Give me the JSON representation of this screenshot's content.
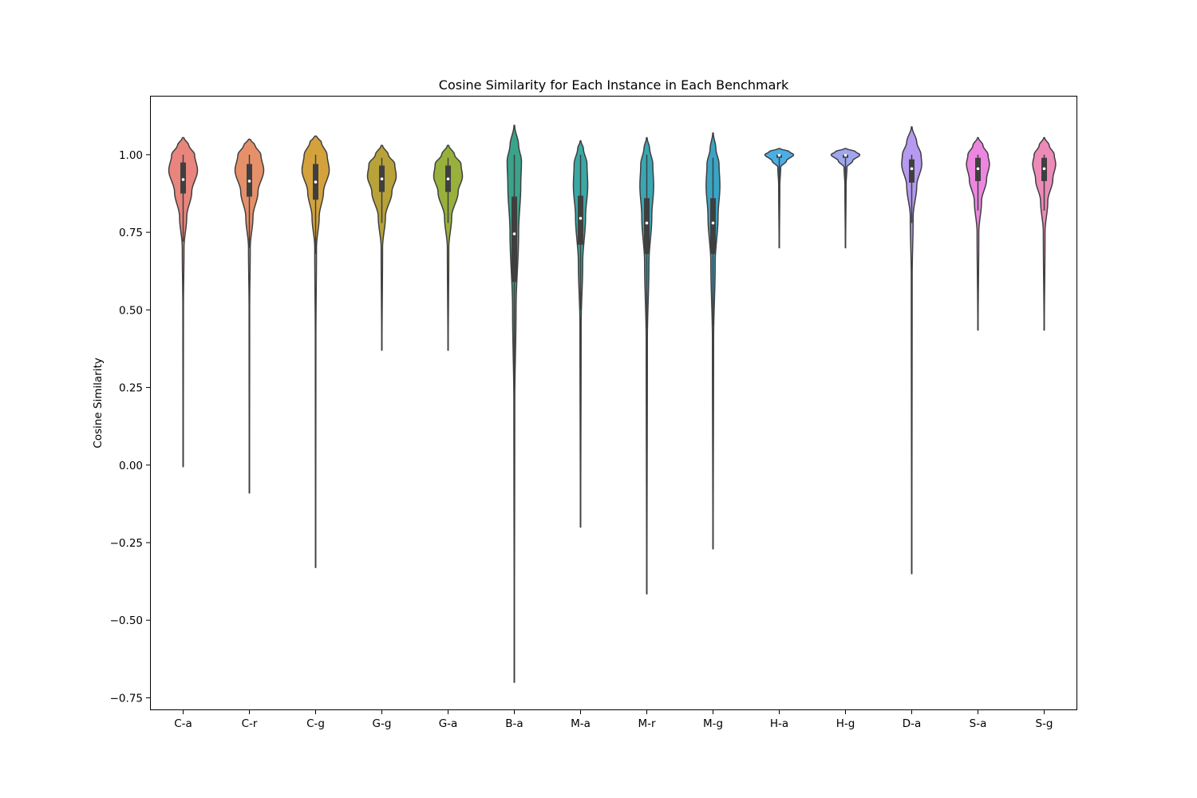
{
  "chart_data": {
    "type": "violin",
    "title": "Cosine Similarity for Each Instance in Each Benchmark",
    "xlabel": "",
    "ylabel": "Cosine Similarity",
    "ylim": [
      -0.79,
      1.19
    ],
    "yticks": [
      -0.75,
      -0.5,
      -0.25,
      0.0,
      0.25,
      0.5,
      0.75,
      1.0
    ],
    "ytick_labels": [
      "−0.75",
      "−0.50",
      "−0.25",
      "0.00",
      "0.25",
      "0.50",
      "0.75",
      "1.00"
    ],
    "grid": false,
    "categories": [
      "C-a",
      "C-r",
      "C-g",
      "G-g",
      "G-a",
      "B-a",
      "M-a",
      "M-r",
      "M-g",
      "H-a",
      "H-g",
      "D-a",
      "S-a",
      "S-g"
    ],
    "series": [
      {
        "category": "C-a",
        "color": "#e8857c",
        "min": -0.005,
        "max": 1.055,
        "q1": 0.875,
        "median": 0.92,
        "q3": 0.975,
        "whisker_low": 0.72,
        "whisker_high": 1.0,
        "density": [
          [
            -0.005,
            0.01
          ],
          [
            0.5,
            0.02
          ],
          [
            0.7,
            0.06
          ],
          [
            0.8,
            0.25
          ],
          [
            0.88,
            0.6
          ],
          [
            0.95,
            1.0
          ],
          [
            1.0,
            0.8
          ],
          [
            1.03,
            0.4
          ],
          [
            1.055,
            0.05
          ]
        ]
      },
      {
        "category": "C-r",
        "color": "#e6906a",
        "min": -0.09,
        "max": 1.05,
        "q1": 0.865,
        "median": 0.915,
        "q3": 0.97,
        "whisker_low": 0.7,
        "whisker_high": 1.0,
        "density": [
          [
            -0.09,
            0.01
          ],
          [
            0.5,
            0.02
          ],
          [
            0.7,
            0.06
          ],
          [
            0.8,
            0.25
          ],
          [
            0.88,
            0.6
          ],
          [
            0.95,
            1.0
          ],
          [
            1.0,
            0.8
          ],
          [
            1.03,
            0.4
          ],
          [
            1.05,
            0.05
          ]
        ]
      },
      {
        "category": "C-g",
        "color": "#d4a23c",
        "min": -0.33,
        "max": 1.06,
        "q1": 0.855,
        "median": 0.912,
        "q3": 0.97,
        "whisker_low": 0.68,
        "whisker_high": 1.0,
        "density": [
          [
            -0.33,
            0.01
          ],
          [
            0.4,
            0.02
          ],
          [
            0.7,
            0.06
          ],
          [
            0.8,
            0.25
          ],
          [
            0.88,
            0.55
          ],
          [
            0.95,
            0.95
          ],
          [
            1.0,
            0.8
          ],
          [
            1.04,
            0.4
          ],
          [
            1.06,
            0.05
          ]
        ]
      },
      {
        "category": "G-g",
        "color": "#b8a23a",
        "min": 0.37,
        "max": 1.03,
        "q1": 0.88,
        "median": 0.922,
        "q3": 0.965,
        "whisker_low": 0.78,
        "whisker_high": 0.99,
        "density": [
          [
            0.37,
            0.01
          ],
          [
            0.7,
            0.05
          ],
          [
            0.8,
            0.25
          ],
          [
            0.88,
            0.7
          ],
          [
            0.93,
            1.0
          ],
          [
            0.97,
            0.9
          ],
          [
            1.0,
            0.45
          ],
          [
            1.03,
            0.05
          ]
        ]
      },
      {
        "category": "G-a",
        "color": "#98b03c",
        "min": 0.37,
        "max": 1.03,
        "q1": 0.88,
        "median": 0.922,
        "q3": 0.965,
        "whisker_low": 0.78,
        "whisker_high": 0.99,
        "density": [
          [
            0.37,
            0.01
          ],
          [
            0.7,
            0.05
          ],
          [
            0.8,
            0.25
          ],
          [
            0.88,
            0.7
          ],
          [
            0.93,
            1.0
          ],
          [
            0.97,
            0.9
          ],
          [
            1.0,
            0.45
          ],
          [
            1.03,
            0.05
          ]
        ]
      },
      {
        "category": "B-a",
        "color": "#3aa48a",
        "min": -0.7,
        "max": 1.095,
        "q1": 0.59,
        "median": 0.745,
        "q3": 0.865,
        "whisker_low": 0.2,
        "whisker_high": 1.0,
        "density": [
          [
            -0.7,
            0.005
          ],
          [
            0.2,
            0.03
          ],
          [
            0.5,
            0.12
          ],
          [
            0.75,
            0.3
          ],
          [
            0.9,
            0.45
          ],
          [
            0.98,
            0.5
          ],
          [
            1.03,
            0.3
          ],
          [
            1.095,
            0.02
          ]
        ]
      },
      {
        "category": "M-a",
        "color": "#3aa8a4",
        "min": -0.2,
        "max": 1.045,
        "q1": 0.71,
        "median": 0.795,
        "q3": 0.868,
        "whisker_low": 0.5,
        "whisker_high": 1.0,
        "density": [
          [
            -0.2,
            0.01
          ],
          [
            0.45,
            0.04
          ],
          [
            0.65,
            0.15
          ],
          [
            0.8,
            0.35
          ],
          [
            0.9,
            0.5
          ],
          [
            0.97,
            0.45
          ],
          [
            1.02,
            0.2
          ],
          [
            1.045,
            0.02
          ]
        ]
      },
      {
        "category": "M-r",
        "color": "#3aa6b4",
        "min": -0.415,
        "max": 1.055,
        "q1": 0.68,
        "median": 0.78,
        "q3": 0.86,
        "whisker_low": 0.44,
        "whisker_high": 1.0,
        "density": [
          [
            -0.415,
            0.01
          ],
          [
            0.4,
            0.04
          ],
          [
            0.65,
            0.15
          ],
          [
            0.8,
            0.35
          ],
          [
            0.9,
            0.48
          ],
          [
            0.97,
            0.42
          ],
          [
            1.02,
            0.2
          ],
          [
            1.055,
            0.02
          ]
        ]
      },
      {
        "category": "M-g",
        "color": "#3aa4c4",
        "min": -0.27,
        "max": 1.07,
        "q1": 0.68,
        "median": 0.78,
        "q3": 0.86,
        "whisker_low": 0.45,
        "whisker_high": 0.99,
        "density": [
          [
            -0.27,
            0.01
          ],
          [
            0.4,
            0.04
          ],
          [
            0.65,
            0.15
          ],
          [
            0.8,
            0.35
          ],
          [
            0.9,
            0.48
          ],
          [
            0.97,
            0.42
          ],
          [
            1.02,
            0.2
          ],
          [
            1.07,
            0.02
          ]
        ]
      },
      {
        "category": "H-a",
        "color": "#4aaee6",
        "min": 0.7,
        "max": 1.02,
        "q1": 0.99,
        "median": 0.998,
        "q3": 1.0,
        "whisker_low": 0.86,
        "whisker_high": 1.0,
        "density": [
          [
            0.7,
            0.01
          ],
          [
            0.9,
            0.04
          ],
          [
            0.96,
            0.1
          ],
          [
            0.98,
            0.5
          ],
          [
            1.0,
            1.0
          ],
          [
            1.01,
            0.7
          ],
          [
            1.02,
            0.05
          ]
        ]
      },
      {
        "category": "H-g",
        "color": "#9ea6ee",
        "min": 0.7,
        "max": 1.02,
        "q1": 0.99,
        "median": 0.998,
        "q3": 1.0,
        "whisker_low": 0.86,
        "whisker_high": 1.0,
        "density": [
          [
            0.7,
            0.01
          ],
          [
            0.9,
            0.04
          ],
          [
            0.96,
            0.1
          ],
          [
            0.98,
            0.5
          ],
          [
            1.0,
            1.0
          ],
          [
            1.01,
            0.7
          ],
          [
            1.02,
            0.05
          ]
        ]
      },
      {
        "category": "D-a",
        "color": "#b69af0",
        "min": -0.35,
        "max": 1.09,
        "q1": 0.91,
        "median": 0.955,
        "q3": 0.985,
        "whisker_low": 0.78,
        "whisker_high": 1.0,
        "density": [
          [
            -0.35,
            0.01
          ],
          [
            0.6,
            0.03
          ],
          [
            0.8,
            0.1
          ],
          [
            0.9,
            0.35
          ],
          [
            0.97,
            0.7
          ],
          [
            1.0,
            0.65
          ],
          [
            1.04,
            0.35
          ],
          [
            1.09,
            0.02
          ]
        ]
      },
      {
        "category": "S-a",
        "color": "#ec86e0",
        "min": 0.435,
        "max": 1.055,
        "q1": 0.915,
        "median": 0.955,
        "q3": 0.99,
        "whisker_low": 0.82,
        "whisker_high": 1.0,
        "density": [
          [
            0.435,
            0.01
          ],
          [
            0.75,
            0.06
          ],
          [
            0.85,
            0.25
          ],
          [
            0.92,
            0.6
          ],
          [
            0.97,
            0.8
          ],
          [
            1.0,
            0.7
          ],
          [
            1.03,
            0.35
          ],
          [
            1.055,
            0.03
          ]
        ]
      },
      {
        "category": "S-g",
        "color": "#ec8ab8",
        "min": 0.435,
        "max": 1.055,
        "q1": 0.915,
        "median": 0.955,
        "q3": 0.99,
        "whisker_low": 0.82,
        "whisker_high": 1.0,
        "density": [
          [
            0.435,
            0.01
          ],
          [
            0.75,
            0.06
          ],
          [
            0.85,
            0.25
          ],
          [
            0.92,
            0.6
          ],
          [
            0.97,
            0.8
          ],
          [
            1.0,
            0.7
          ],
          [
            1.03,
            0.35
          ],
          [
            1.055,
            0.03
          ]
        ]
      }
    ]
  }
}
